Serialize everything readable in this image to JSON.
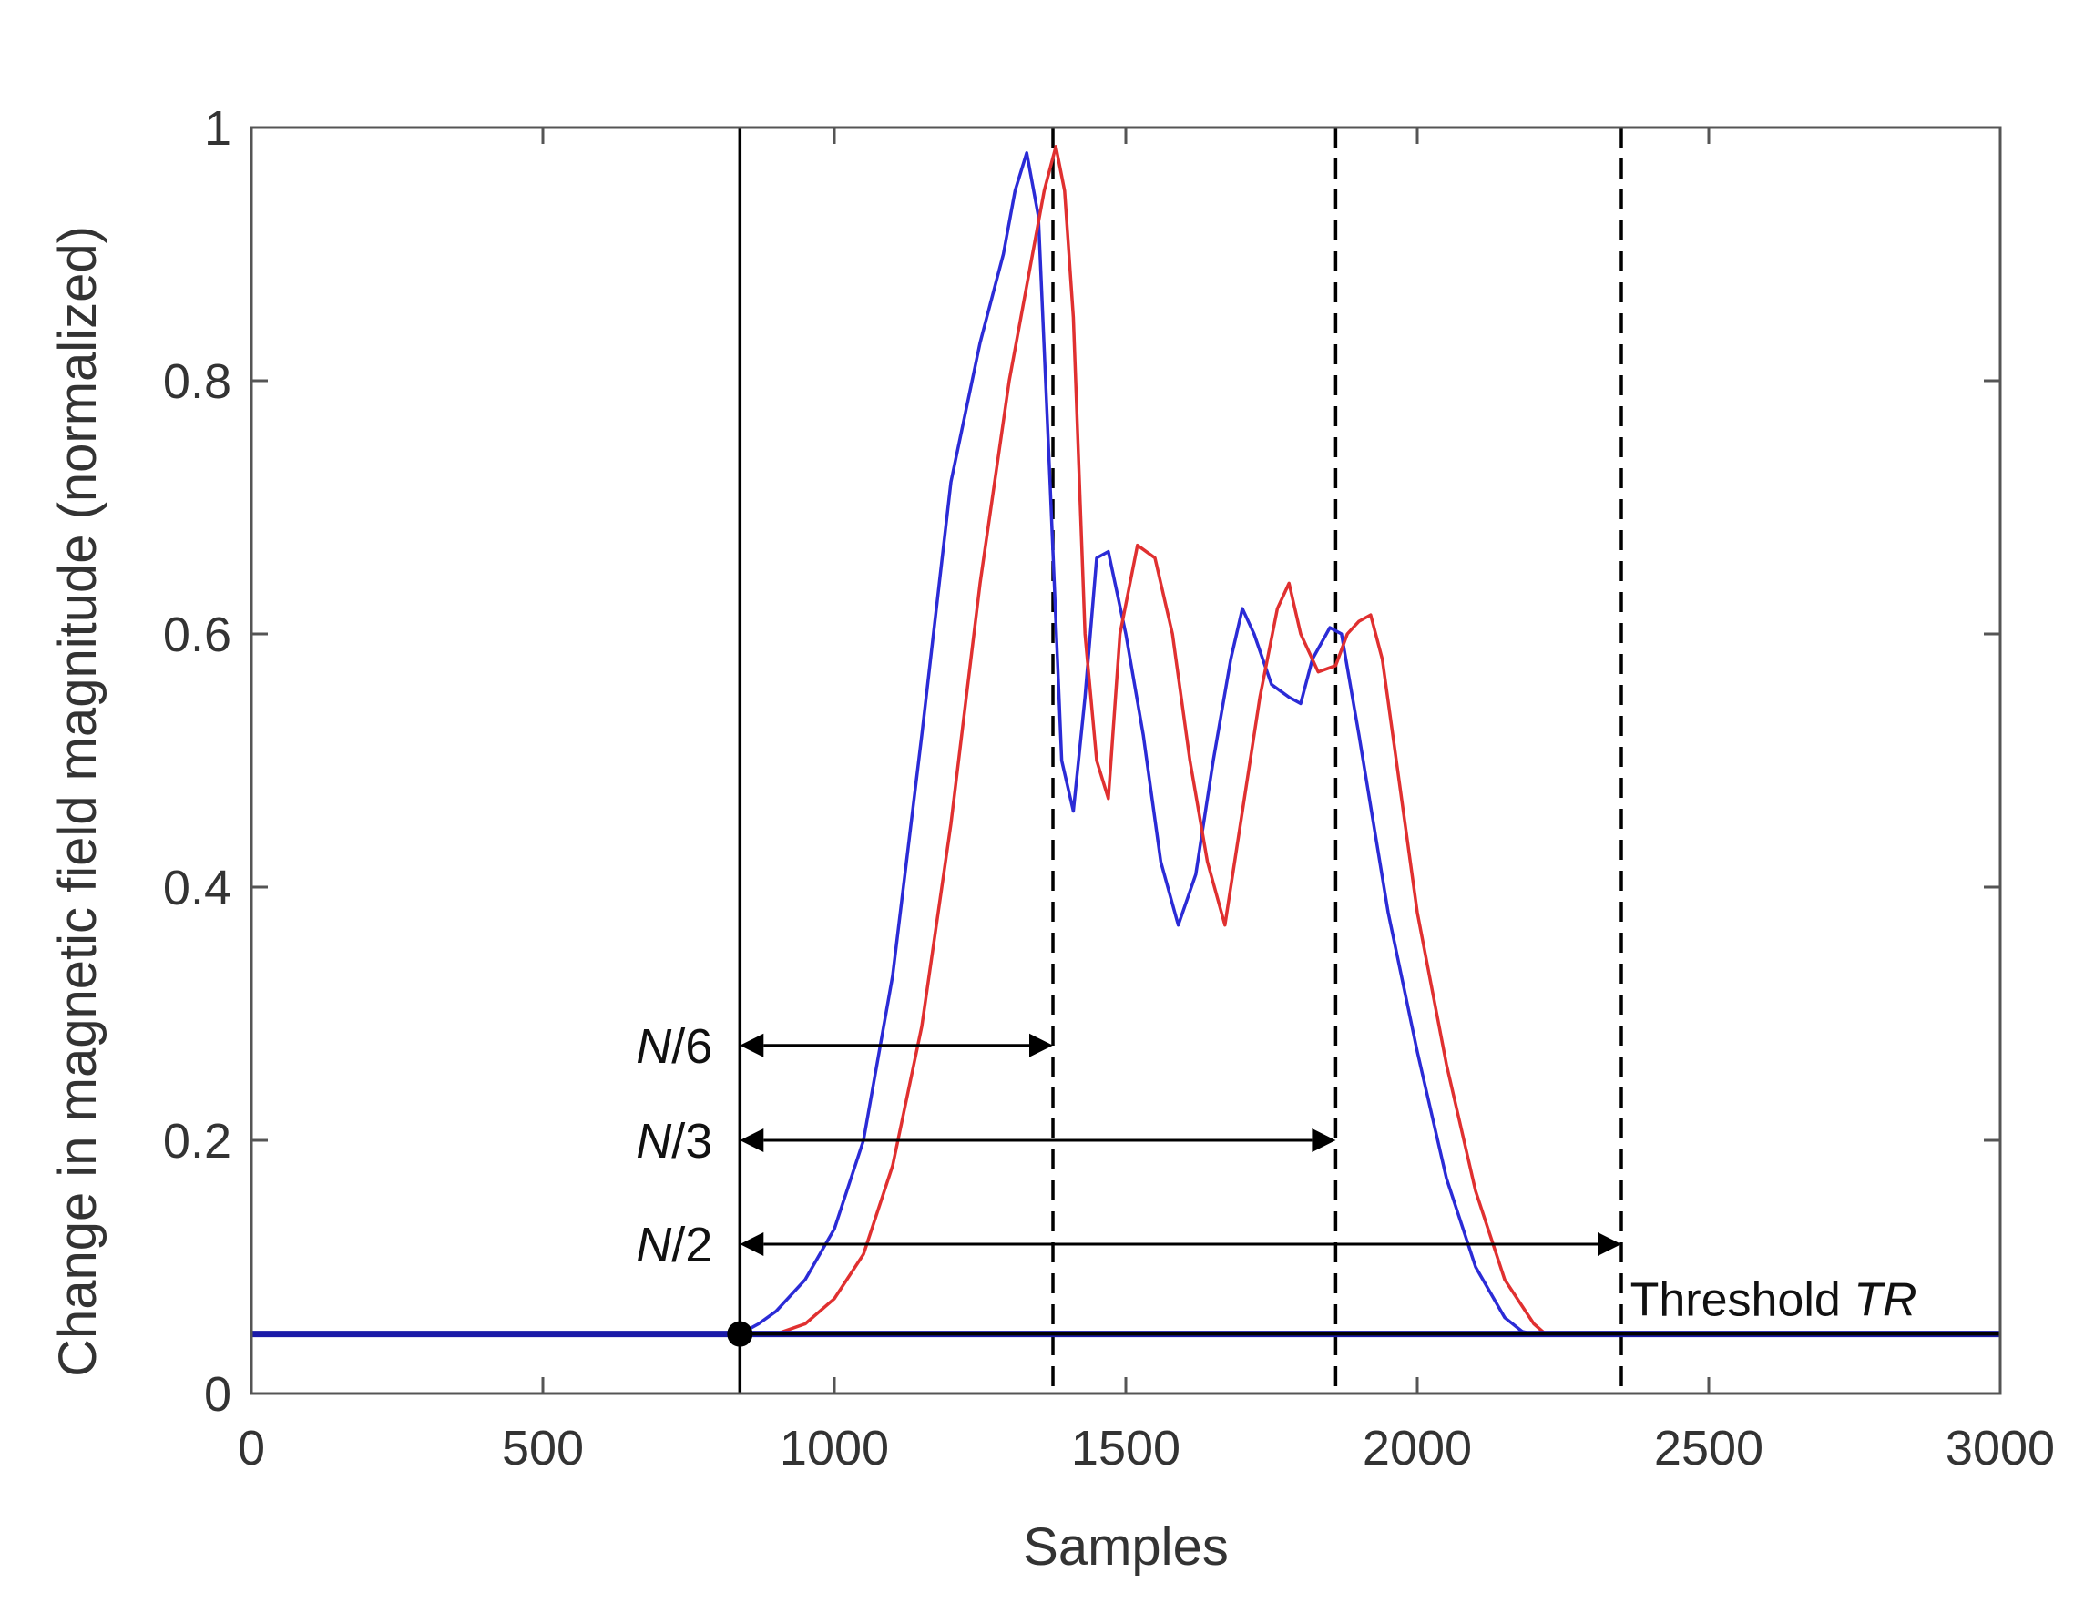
{
  "chart_data": {
    "type": "line",
    "title": "",
    "xlabel": "Samples",
    "ylabel": "Change in magnetic field magnitude (normalized)",
    "xlim": [
      0,
      3000
    ],
    "ylim": [
      0,
      1
    ],
    "xticks": [
      0,
      500,
      1000,
      1500,
      2000,
      2500,
      3000
    ],
    "xtick_labels": [
      "0",
      "500",
      "1000",
      "1500",
      "2000",
      "2500",
      "3000"
    ],
    "yticks": [
      0,
      0.2,
      0.4,
      0.6,
      0.8,
      1
    ],
    "ytick_labels": [
      "0",
      "0.2",
      "0.4",
      "0.6",
      "0.8",
      "1"
    ],
    "grid": false,
    "threshold": {
      "value": 0.047,
      "label_prefix": "Threshold ",
      "label_var": "TR",
      "color": "#000000"
    },
    "onset_marker": {
      "x": 838,
      "y": 0.047
    },
    "vertical_lines": [
      {
        "x": 838,
        "style": "solid"
      },
      {
        "x": 1375,
        "style": "dashed"
      },
      {
        "x": 1860,
        "style": "dashed"
      },
      {
        "x": 2350,
        "style": "dashed"
      }
    ],
    "spans": [
      {
        "label_var": "N",
        "label_den": "/6",
        "from": 838,
        "to": 1375,
        "y": 0.275
      },
      {
        "label_var": "N",
        "label_den": "/3",
        "from": 838,
        "to": 1860,
        "y": 0.2
      },
      {
        "label_var": "N",
        "label_den": "/2",
        "from": 838,
        "to": 2350,
        "y": 0.118
      }
    ],
    "series": [
      {
        "name": "blue",
        "color": "#2b2bd6",
        "x": [
          0,
          838,
          870,
          900,
          950,
          1000,
          1050,
          1100,
          1150,
          1200,
          1250,
          1290,
          1310,
          1330,
          1350,
          1370,
          1390,
          1410,
          1430,
          1450,
          1470,
          1500,
          1530,
          1560,
          1590,
          1620,
          1650,
          1680,
          1700,
          1720,
          1750,
          1780,
          1800,
          1820,
          1850,
          1870,
          1900,
          1950,
          2000,
          2050,
          2100,
          2150,
          2180,
          2200,
          3000
        ],
        "values": [
          0.047,
          0.047,
          0.055,
          0.065,
          0.09,
          0.13,
          0.2,
          0.33,
          0.52,
          0.72,
          0.83,
          0.9,
          0.95,
          0.98,
          0.93,
          0.72,
          0.5,
          0.46,
          0.55,
          0.66,
          0.665,
          0.6,
          0.52,
          0.42,
          0.37,
          0.41,
          0.5,
          0.58,
          0.62,
          0.6,
          0.56,
          0.55,
          0.545,
          0.58,
          0.605,
          0.6,
          0.52,
          0.38,
          0.27,
          0.17,
          0.1,
          0.06,
          0.049,
          0.047,
          0.047
        ]
      },
      {
        "name": "red",
        "color": "#e03030",
        "x": [
          0,
          838,
          900,
          950,
          1000,
          1050,
          1100,
          1150,
          1200,
          1250,
          1300,
          1340,
          1360,
          1380,
          1395,
          1410,
          1430,
          1450,
          1470,
          1490,
          1520,
          1550,
          1580,
          1610,
          1640,
          1670,
          1700,
          1730,
          1760,
          1780,
          1800,
          1830,
          1860,
          1880,
          1900,
          1920,
          1940,
          1970,
          2000,
          2050,
          2100,
          2150,
          2200,
          2220,
          3000
        ],
        "values": [
          0.047,
          0.047,
          0.047,
          0.055,
          0.075,
          0.11,
          0.18,
          0.29,
          0.45,
          0.64,
          0.8,
          0.9,
          0.95,
          0.985,
          0.95,
          0.85,
          0.6,
          0.5,
          0.47,
          0.6,
          0.67,
          0.66,
          0.6,
          0.5,
          0.42,
          0.37,
          0.46,
          0.55,
          0.62,
          0.64,
          0.6,
          0.57,
          0.575,
          0.6,
          0.61,
          0.615,
          0.58,
          0.48,
          0.38,
          0.26,
          0.16,
          0.09,
          0.055,
          0.047,
          0.047
        ]
      }
    ]
  }
}
